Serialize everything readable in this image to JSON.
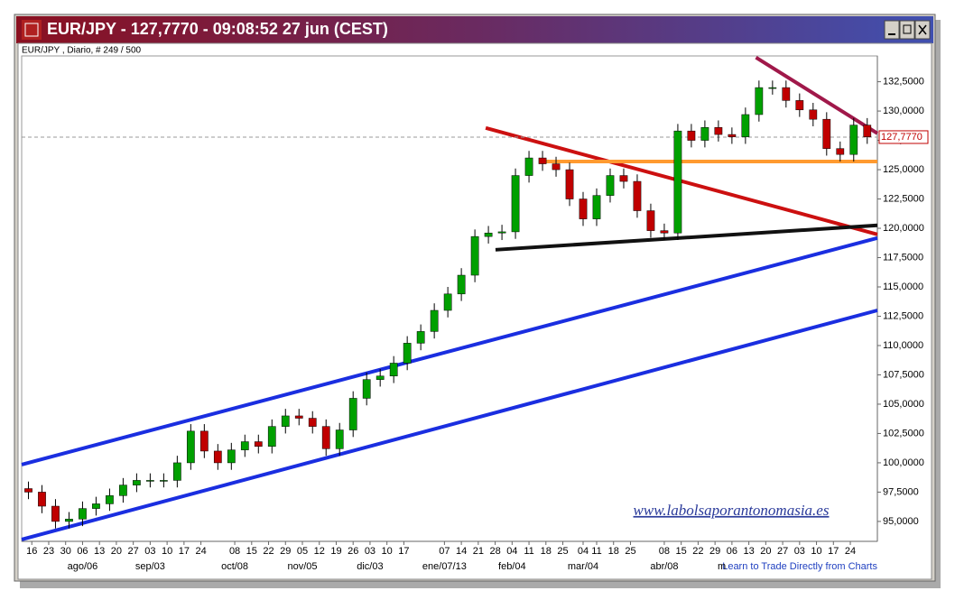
{
  "chart_data": {
    "type": "candlestick",
    "title": "EUR/JPY - 127,7770 - 09:08:52  27 jun (CEST)",
    "subtitle": "EUR/JPY , Diario, # 249 / 500",
    "watermark": "www.labolsaporantonomasia.es",
    "footer": "Learn to Trade Directly from Charts",
    "up_color": "#00a000",
    "down_color": "#c00000",
    "x": [
      2,
      6,
      10,
      14,
      18,
      22,
      26,
      30,
      34,
      38,
      42,
      46,
      50,
      54,
      58,
      62,
      66,
      70,
      74,
      78,
      82,
      86,
      90,
      94,
      98,
      102,
      106,
      110,
      114,
      118,
      122,
      126,
      130,
      134,
      138,
      142,
      146,
      150,
      154,
      158,
      162,
      166,
      170,
      174,
      178,
      182,
      186,
      190,
      194,
      198,
      202,
      206,
      210,
      214,
      218,
      222,
      226,
      230,
      234,
      238,
      242,
      246,
      250
    ],
    "open": [
      97.8,
      97.5,
      96.3,
      95.0,
      95.2,
      96.1,
      96.5,
      97.2,
      98.1,
      98.5,
      98.5,
      98.5,
      100.0,
      102.7,
      101.0,
      100.0,
      101.1,
      101.8,
      101.4,
      103.1,
      104.0,
      103.8,
      103.1,
      101.2,
      102.8,
      105.5,
      107.1,
      107.4,
      108.5,
      110.2,
      111.2,
      113.0,
      114.4,
      116.0,
      119.3,
      119.6,
      119.7,
      124.5,
      126.0,
      125.5,
      125.0,
      122.5,
      120.8,
      122.8,
      124.5,
      124.0,
      121.5,
      119.8,
      119.6,
      128.3,
      127.5,
      128.6,
      128.0,
      127.8,
      129.7,
      132.0,
      132.0,
      130.9,
      130.1,
      129.3,
      126.8,
      126.3,
      128.8
    ],
    "high": [
      98.4,
      98.1,
      96.9,
      95.8,
      96.7,
      97.1,
      97.8,
      98.7,
      99.1,
      99.1,
      99.1,
      100.6,
      103.3,
      103.3,
      101.6,
      101.7,
      102.4,
      102.4,
      103.7,
      104.6,
      104.6,
      104.4,
      103.7,
      103.4,
      106.1,
      107.7,
      108.0,
      109.1,
      110.8,
      111.8,
      113.6,
      115.0,
      116.6,
      119.9,
      120.2,
      120.3,
      125.1,
      126.6,
      126.6,
      126.1,
      125.6,
      123.1,
      123.4,
      125.1,
      125.1,
      124.6,
      122.1,
      120.4,
      128.9,
      128.9,
      129.2,
      129.2,
      128.6,
      130.3,
      132.6,
      132.6,
      132.6,
      131.5,
      130.7,
      129.9,
      127.4,
      129.4,
      129.4
    ],
    "low": [
      96.9,
      95.7,
      94.4,
      94.4,
      94.6,
      95.5,
      95.9,
      96.6,
      97.5,
      97.9,
      97.9,
      97.9,
      99.4,
      100.4,
      99.4,
      99.4,
      100.5,
      100.8,
      100.8,
      102.5,
      103.2,
      102.5,
      100.6,
      100.6,
      102.2,
      104.9,
      106.5,
      106.8,
      107.9,
      109.6,
      110.6,
      112.4,
      113.8,
      115.4,
      118.7,
      119.0,
      119.1,
      123.9,
      124.9,
      124.4,
      121.9,
      120.2,
      120.2,
      122.2,
      123.4,
      120.9,
      119.2,
      119.0,
      119.0,
      126.9,
      126.9,
      127.4,
      127.2,
      127.2,
      129.1,
      131.4,
      130.3,
      129.5,
      128.7,
      126.2,
      125.7,
      125.7,
      127.2
    ],
    "close": [
      97.5,
      96.3,
      95.0,
      95.2,
      96.1,
      96.5,
      97.2,
      98.1,
      98.5,
      98.5,
      98.5,
      100.0,
      102.7,
      101.0,
      100.0,
      101.1,
      101.8,
      101.4,
      103.1,
      104.0,
      103.8,
      103.1,
      101.2,
      102.8,
      105.5,
      107.1,
      107.4,
      108.5,
      110.2,
      111.2,
      113.0,
      114.4,
      116.0,
      119.3,
      119.6,
      119.7,
      124.5,
      126.0,
      125.5,
      125.0,
      122.5,
      120.8,
      122.8,
      124.5,
      124.0,
      121.5,
      119.8,
      119.6,
      128.3,
      127.5,
      128.6,
      128.0,
      127.8,
      129.7,
      132.0,
      132.0,
      130.9,
      130.1,
      129.3,
      126.8,
      126.3,
      128.8,
      127.8
    ],
    "xlim": [
      0,
      253
    ],
    "ylim": [
      93.3,
      134.7
    ],
    "yticks": [
      {
        "value": 95,
        "label": "95,0000"
      },
      {
        "value": 97.5,
        "label": "97,5000"
      },
      {
        "value": 100,
        "label": "100,0000"
      },
      {
        "value": 102.5,
        "label": "102,5000"
      },
      {
        "value": 105,
        "label": "105,0000"
      },
      {
        "value": 107.5,
        "label": "107,5000"
      },
      {
        "value": 110,
        "label": "110,0000"
      },
      {
        "value": 112.5,
        "label": "112,5000"
      },
      {
        "value": 115,
        "label": "115,0000"
      },
      {
        "value": 117.5,
        "label": "117,5000"
      },
      {
        "value": 120,
        "label": "120,0000"
      },
      {
        "value": 122.5,
        "label": "122,5000"
      },
      {
        "value": 125,
        "label": "125,0000"
      },
      {
        "value": 127.5,
        "label": "127,5000"
      },
      {
        "value": 130,
        "label": "130,0000"
      },
      {
        "value": 132.5,
        "label": "132,5000"
      }
    ],
    "xticks": [
      {
        "value": 3,
        "label": "16"
      },
      {
        "value": 8,
        "label": "23"
      },
      {
        "value": 13,
        "label": "30"
      },
      {
        "value": 18,
        "label": "06"
      },
      {
        "value": 23,
        "label": "13"
      },
      {
        "value": 28,
        "label": "20"
      },
      {
        "value": 33,
        "label": "27"
      },
      {
        "value": 38,
        "label": "03"
      },
      {
        "value": 43,
        "label": "10"
      },
      {
        "value": 48,
        "label": "17"
      },
      {
        "value": 53,
        "label": "24"
      },
      {
        "value": 63,
        "label": "08"
      },
      {
        "value": 68,
        "label": "15"
      },
      {
        "value": 73,
        "label": "22"
      },
      {
        "value": 78,
        "label": "29"
      },
      {
        "value": 83,
        "label": "05"
      },
      {
        "value": 88,
        "label": "12"
      },
      {
        "value": 93,
        "label": "19"
      },
      {
        "value": 98,
        "label": "26"
      },
      {
        "value": 103,
        "label": "03"
      },
      {
        "value": 108,
        "label": "10"
      },
      {
        "value": 113,
        "label": "17"
      },
      {
        "value": 125,
        "label": "07"
      },
      {
        "value": 130,
        "label": "14"
      },
      {
        "value": 135,
        "label": "21"
      },
      {
        "value": 140,
        "label": "28"
      },
      {
        "value": 145,
        "label": "04"
      },
      {
        "value": 150,
        "label": "11"
      },
      {
        "value": 155,
        "label": "18"
      },
      {
        "value": 160,
        "label": "25"
      },
      {
        "value": 166,
        "label": "04"
      },
      {
        "value": 170,
        "label": "11"
      },
      {
        "value": 175,
        "label": "18"
      },
      {
        "value": 180,
        "label": "25"
      },
      {
        "value": 190,
        "label": "08"
      },
      {
        "value": 195,
        "label": "15"
      },
      {
        "value": 200,
        "label": "22"
      },
      {
        "value": 205,
        "label": "29"
      },
      {
        "value": 210,
        "label": "06"
      },
      {
        "value": 215,
        "label": "13"
      },
      {
        "value": 220,
        "label": "20"
      },
      {
        "value": 225,
        "label": "27"
      },
      {
        "value": 230,
        "label": "03"
      },
      {
        "value": 235,
        "label": "10"
      },
      {
        "value": 240,
        "label": "17"
      },
      {
        "value": 245,
        "label": "24"
      }
    ],
    "month_ticks": [
      {
        "value": 18,
        "label": "ago/06"
      },
      {
        "value": 38,
        "label": "sep/03"
      },
      {
        "value": 63,
        "label": "oct/08"
      },
      {
        "value": 83,
        "label": "nov/05"
      },
      {
        "value": 103,
        "label": "dic/03"
      },
      {
        "value": 125,
        "label": "ene/07/13"
      },
      {
        "value": 145,
        "label": "feb/04"
      },
      {
        "value": 166,
        "label": "mar/04"
      },
      {
        "value": 190,
        "label": "abr/08"
      },
      {
        "value": 207,
        "label": "m"
      }
    ],
    "current_price": {
      "value": 127.777,
      "label": "127,7770"
    },
    "trendlines": [
      {
        "color": "#1a2ee0",
        "points": [
          [
            0,
            99.85
          ],
          [
            253,
            119.17
          ]
        ]
      },
      {
        "color": "#1a2ee0",
        "points": [
          [
            0,
            93.46
          ],
          [
            253,
            113.0
          ]
        ]
      },
      {
        "color": "#cc1010",
        "points": [
          [
            137.2,
            128.56
          ],
          [
            253,
            119.48
          ]
        ]
      },
      {
        "color": "#111111",
        "points": [
          [
            140.1,
            118.17
          ],
          [
            253,
            120.25
          ]
        ]
      },
      {
        "color": "#ff9a30",
        "points": [
          [
            154,
            125.7
          ],
          [
            253,
            125.7
          ]
        ]
      },
      {
        "color": "#a0184a",
        "points": [
          [
            217.1,
            134.57
          ],
          [
            253,
            128.1
          ]
        ]
      }
    ]
  }
}
